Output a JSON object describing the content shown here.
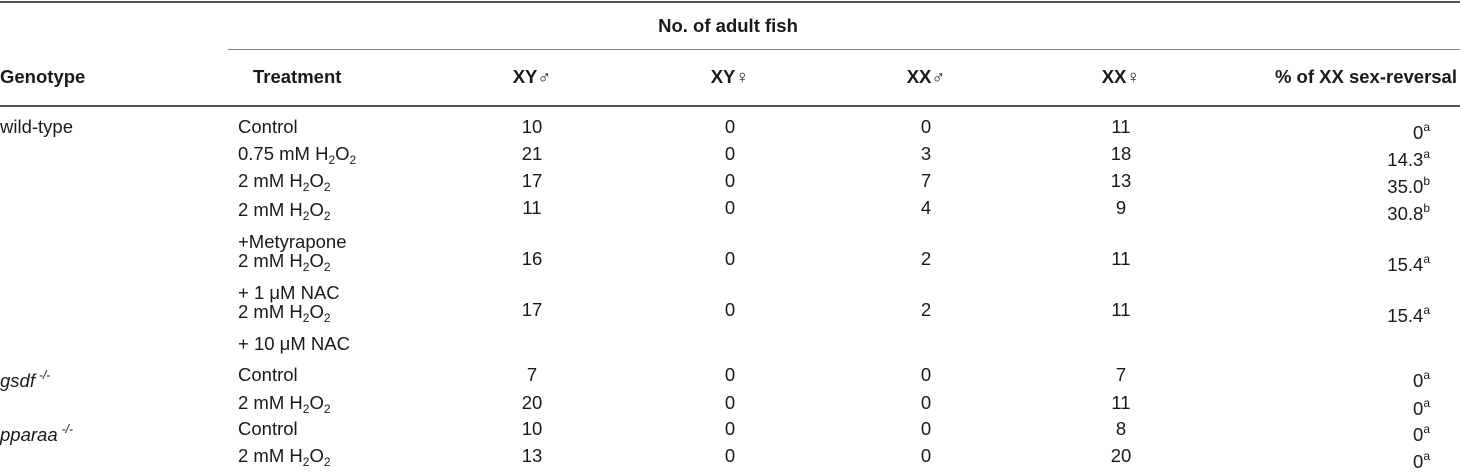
{
  "group_header": "No. of adult fish",
  "headers": {
    "genotype": "Genotype",
    "treatment": "Treatment",
    "xy_male": "XY♂",
    "xy_female": "XY♀",
    "xx_male": "XX♂",
    "xx_female": "XX♀",
    "percent": "% of XX sex-reversal"
  },
  "rows": [
    {
      "genotype": "wild-type",
      "genotype_sup": "",
      "t_pre": "Control",
      "t_sub": "",
      "t_post": "",
      "t_line2": "",
      "xy_m": "10",
      "xy_f": "0",
      "xx_m": "0",
      "xx_f": "11",
      "pct": "0",
      "sig": "a"
    },
    {
      "genotype": "",
      "genotype_sup": "",
      "t_pre": "0.75 mM H",
      "t_sub": "2",
      "t_post": "O2",
      "t_line2": "",
      "xy_m": "21",
      "xy_f": "0",
      "xx_m": "3",
      "xx_f": "18",
      "pct": "14.3",
      "sig": "a"
    },
    {
      "genotype": "",
      "genotype_sup": "",
      "t_pre": "2 mM H",
      "t_sub": "2",
      "t_post": "O2",
      "t_line2": "",
      "xy_m": "17",
      "xy_f": "0",
      "xx_m": "7",
      "xx_f": "13",
      "pct": "35.0",
      "sig": "b"
    },
    {
      "genotype": "",
      "genotype_sup": "",
      "t_pre": "2 mM H",
      "t_sub": "2",
      "t_post": "O2",
      "t_line2": "+Metyrapone",
      "xy_m": "11",
      "xy_f": "0",
      "xx_m": "4",
      "xx_f": "9",
      "pct": "30.8",
      "sig": "b"
    },
    {
      "genotype": "",
      "genotype_sup": "",
      "t_pre": "2 mM H",
      "t_sub": "2",
      "t_post": "O2",
      "t_line2": "+ 1 μM NAC",
      "xy_m": "16",
      "xy_f": "0",
      "xx_m": "2",
      "xx_f": "11",
      "pct": "15.4",
      "sig": "a"
    },
    {
      "genotype": "",
      "genotype_sup": "",
      "t_pre": "2 mM H",
      "t_sub": "2",
      "t_post": "O2",
      "t_line2": "+ 10 μM NAC",
      "xy_m": "17",
      "xy_f": "0",
      "xx_m": "2",
      "xx_f": "11",
      "pct": "15.4",
      "sig": "a"
    },
    {
      "genotype": "gsdf",
      "genotype_sup": "-/-",
      "t_pre": "Control",
      "t_sub": "",
      "t_post": "",
      "t_line2": "",
      "xy_m": "7",
      "xy_f": "0",
      "xx_m": "0",
      "xx_f": "7",
      "pct": "0",
      "sig": "a"
    },
    {
      "genotype": "",
      "genotype_sup": "",
      "t_pre": "2 mM H",
      "t_sub": "2",
      "t_post": "O2",
      "t_line2": "",
      "xy_m": "20",
      "xy_f": "0",
      "xx_m": "0",
      "xx_f": "11",
      "pct": "0",
      "sig": "a"
    },
    {
      "genotype": "pparaa",
      "genotype_sup": "-/-",
      "t_pre": "Control",
      "t_sub": "",
      "t_post": "",
      "t_line2": "",
      "xy_m": "10",
      "xy_f": "0",
      "xx_m": "0",
      "xx_f": "8",
      "pct": "0",
      "sig": "a"
    },
    {
      "genotype": "",
      "genotype_sup": "",
      "t_pre": "2 mM H",
      "t_sub": "2",
      "t_post": "O2",
      "t_line2": "",
      "xy_m": "13",
      "xy_f": "0",
      "xx_m": "0",
      "xx_f": "20",
      "pct": "0",
      "sig": "a"
    }
  ]
}
